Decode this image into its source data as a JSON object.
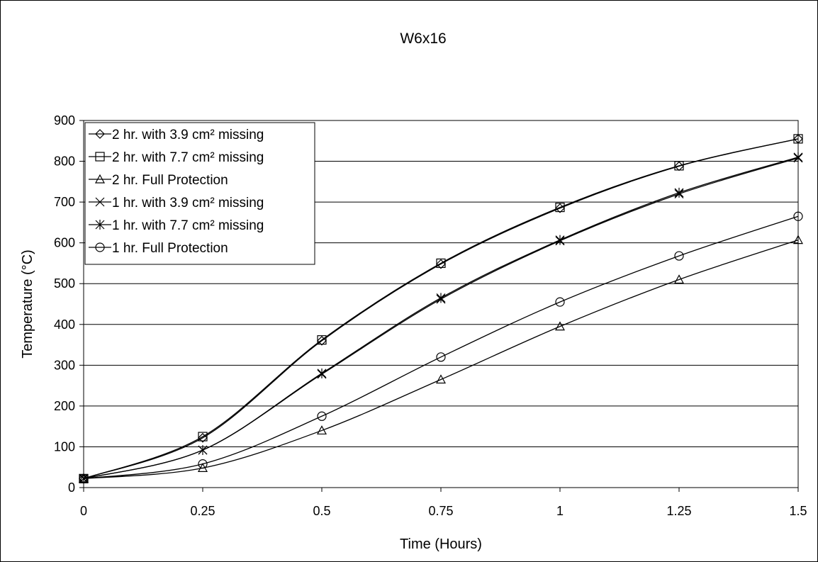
{
  "chart_data": {
    "type": "line",
    "title": "W6x16",
    "xlabel": "Time (Hours)",
    "ylabel": "Temperature (°C)",
    "xlim": [
      0,
      1.5
    ],
    "ylim": [
      0,
      900
    ],
    "x": [
      0,
      0.25,
      0.5,
      0.75,
      1,
      1.25,
      1.5
    ],
    "x_tick_labels": [
      "0",
      "0.25",
      "0.5",
      "0.75",
      "1",
      "1.25",
      "1.5"
    ],
    "y_ticks": [
      0,
      100,
      200,
      300,
      400,
      500,
      600,
      700,
      800,
      900
    ],
    "y_tick_labels": [
      "0",
      "100",
      "200",
      "300",
      "400",
      "500",
      "600",
      "700",
      "800",
      "900"
    ],
    "grid": "horizontal",
    "legend_position": "top-left",
    "series": [
      {
        "name": "2 hr. with 3.9 cm² missing",
        "marker": "diamond",
        "values": [
          22,
          122,
          360,
          548,
          685,
          788,
          855
        ]
      },
      {
        "name": "2 hr. with 7.7 cm² missing",
        "marker": "square",
        "values": [
          22,
          125,
          362,
          550,
          687,
          789,
          855
        ]
      },
      {
        "name": "2 hr. Full Protection",
        "marker": "triangle",
        "values": [
          22,
          48,
          140,
          265,
          395,
          510,
          607
        ]
      },
      {
        "name": "1 hr. with 3.9 cm² missing",
        "marker": "x",
        "values": [
          22,
          92,
          278,
          462,
          605,
          720,
          808
        ]
      },
      {
        "name": "1 hr. with 7.7 cm² missing",
        "marker": "star",
        "values": [
          22,
          92,
          280,
          465,
          607,
          723,
          810
        ]
      },
      {
        "name": "1 hr. Full Protection",
        "marker": "circle",
        "values": [
          22,
          58,
          175,
          320,
          455,
          568,
          665
        ]
      }
    ],
    "colors": {
      "line": "#000000",
      "grid": "#000000",
      "background": "#ffffff"
    }
  }
}
